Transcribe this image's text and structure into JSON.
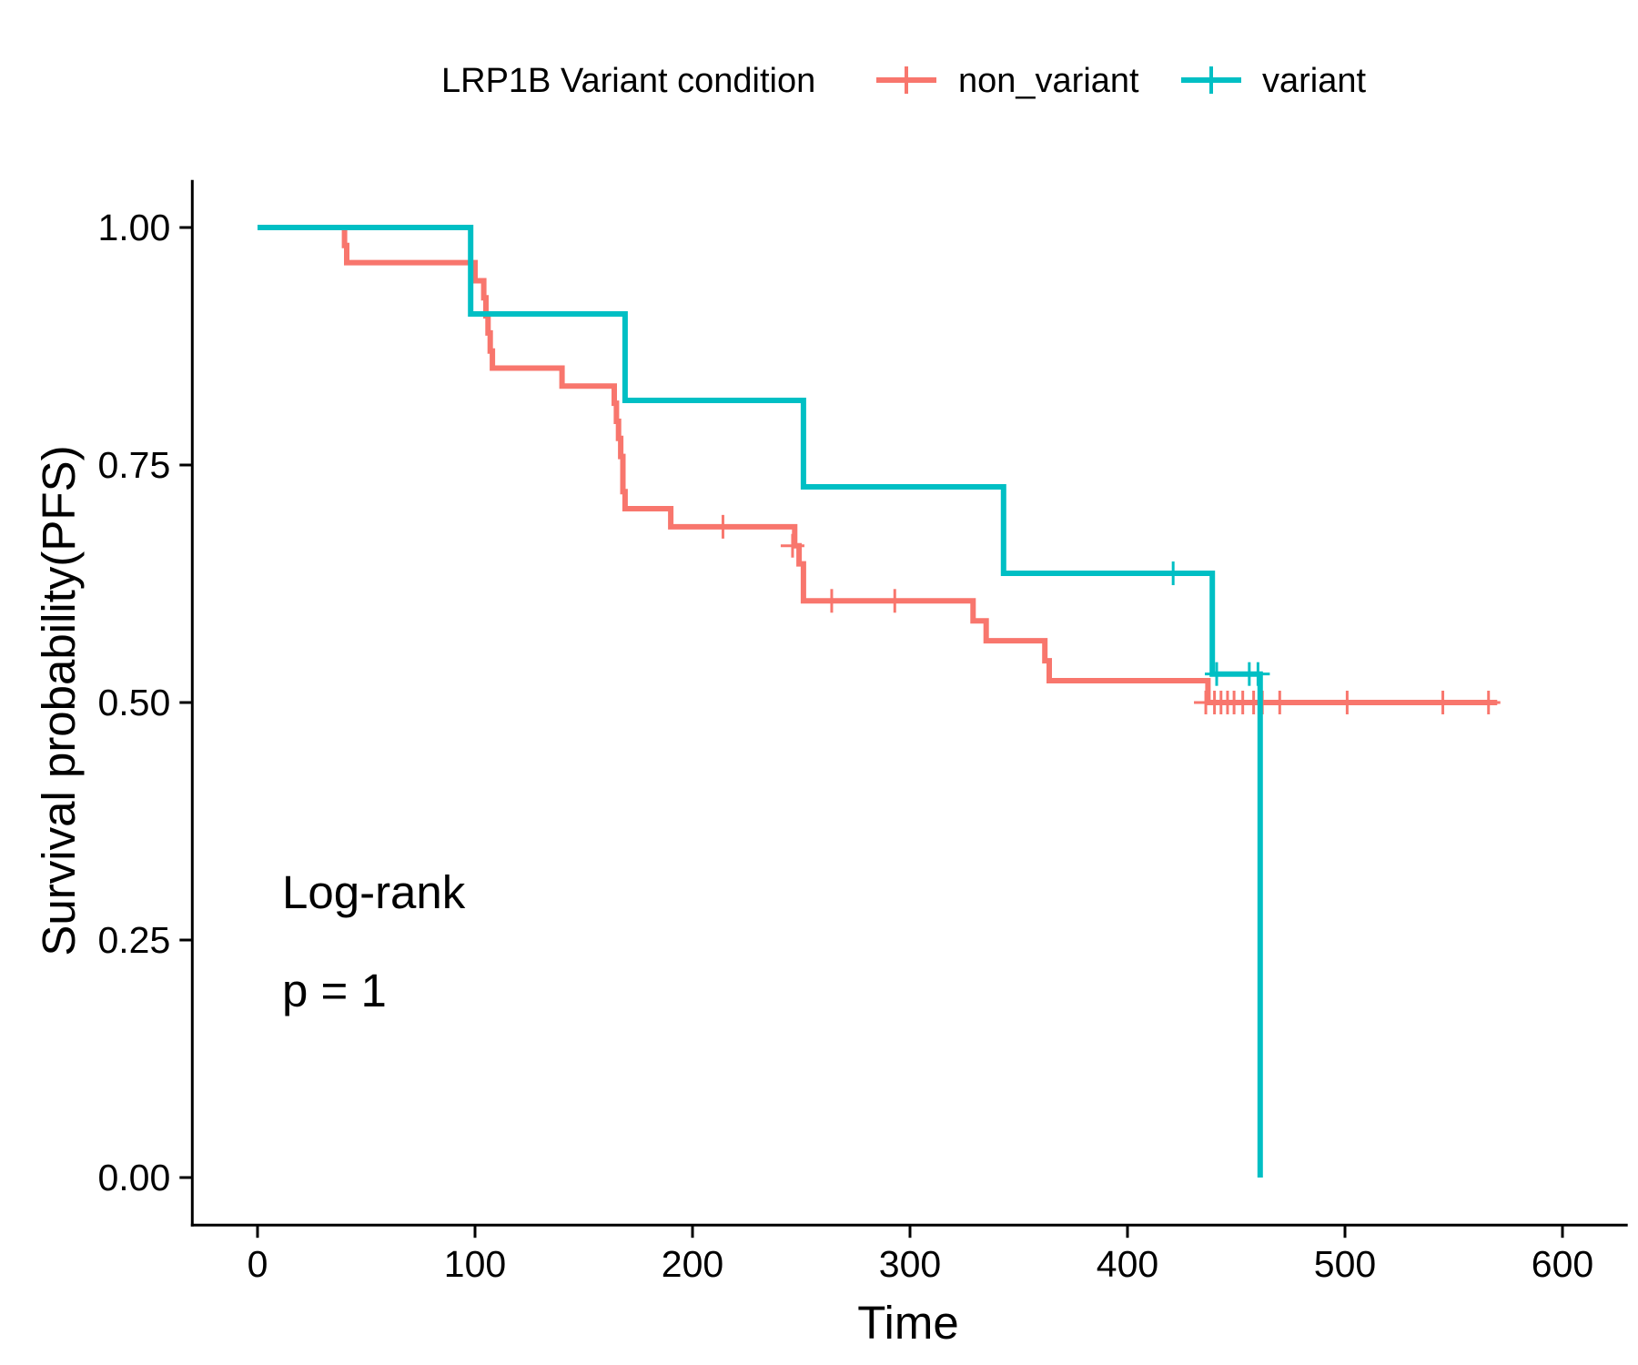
{
  "chart_data": {
    "type": "line",
    "subtype": "kaplan-meier step",
    "title": "",
    "xlabel": "Time",
    "ylabel": "Survival probability(PFS)",
    "xlim": [
      -30,
      630
    ],
    "ylim": [
      -0.05,
      1.05
    ],
    "xticks": [
      0,
      100,
      200,
      300,
      400,
      500,
      600
    ],
    "yticks": [
      0,
      0.25,
      0.5,
      0.75,
      1.0
    ],
    "ytick_labels": [
      "0.00",
      "0.25",
      "0.50",
      "0.75",
      "1.00"
    ],
    "grid": false,
    "legend": {
      "title": "LRP1B Variant condition",
      "placement": "top"
    },
    "annotations": [
      "Log-rank",
      "p = 1"
    ],
    "series": [
      {
        "name": "non_variant",
        "color": "#F8766D",
        "steps": [
          [
            0,
            1.0
          ],
          [
            40,
            1.0
          ],
          [
            40,
            0.981
          ],
          [
            41,
            0.981
          ],
          [
            41,
            0.963
          ],
          [
            100,
            0.963
          ],
          [
            100,
            0.944
          ],
          [
            104,
            0.944
          ],
          [
            104,
            0.926
          ],
          [
            105,
            0.926
          ],
          [
            105,
            0.907
          ],
          [
            106,
            0.907
          ],
          [
            106,
            0.889
          ],
          [
            107,
            0.889
          ],
          [
            107,
            0.87
          ],
          [
            108,
            0.87
          ],
          [
            108,
            0.852
          ],
          [
            140,
            0.852
          ],
          [
            140,
            0.833
          ],
          [
            164,
            0.833
          ],
          [
            164,
            0.815
          ],
          [
            165,
            0.815
          ],
          [
            165,
            0.796
          ],
          [
            166,
            0.796
          ],
          [
            166,
            0.778
          ],
          [
            167,
            0.778
          ],
          [
            167,
            0.759
          ],
          [
            168,
            0.759
          ],
          [
            168,
            0.722
          ],
          [
            169,
            0.722
          ],
          [
            169,
            0.704
          ],
          [
            190,
            0.704
          ],
          [
            190,
            0.685
          ],
          [
            247,
            0.685
          ],
          [
            247,
            0.665
          ],
          [
            249,
            0.665
          ],
          [
            249,
            0.646
          ],
          [
            251,
            0.646
          ],
          [
            251,
            0.607
          ],
          [
            329,
            0.607
          ],
          [
            329,
            0.586
          ],
          [
            335,
            0.586
          ],
          [
            335,
            0.565
          ],
          [
            362,
            0.565
          ],
          [
            362,
            0.544
          ],
          [
            364,
            0.544
          ],
          [
            364,
            0.523
          ],
          [
            437,
            0.523
          ],
          [
            437,
            0.5
          ],
          [
            570,
            0.5
          ]
        ],
        "censored": [
          [
            214,
            0.685
          ],
          [
            246,
            0.665
          ],
          [
            264,
            0.607
          ],
          [
            293,
            0.607
          ],
          [
            436,
            0.5
          ],
          [
            440,
            0.5
          ],
          [
            443,
            0.5
          ],
          [
            446,
            0.5
          ],
          [
            449,
            0.5
          ],
          [
            453,
            0.5
          ],
          [
            458,
            0.5
          ],
          [
            462,
            0.5
          ],
          [
            470,
            0.5
          ],
          [
            501,
            0.5
          ],
          [
            545,
            0.5
          ],
          [
            566,
            0.5
          ]
        ]
      },
      {
        "name": "variant",
        "color": "#00BFC4",
        "steps": [
          [
            0,
            1.0
          ],
          [
            98,
            1.0
          ],
          [
            98,
            0.909
          ],
          [
            169,
            0.909
          ],
          [
            169,
            0.818
          ],
          [
            251,
            0.818
          ],
          [
            251,
            0.727
          ],
          [
            343,
            0.727
          ],
          [
            343,
            0.636
          ],
          [
            439,
            0.636
          ],
          [
            439,
            0.53
          ],
          [
            461,
            0.53
          ],
          [
            461,
            0.0
          ]
        ],
        "censored": [
          [
            421,
            0.636
          ],
          [
            441,
            0.53
          ],
          [
            456,
            0.53
          ],
          [
            460,
            0.53
          ]
        ]
      }
    ]
  }
}
